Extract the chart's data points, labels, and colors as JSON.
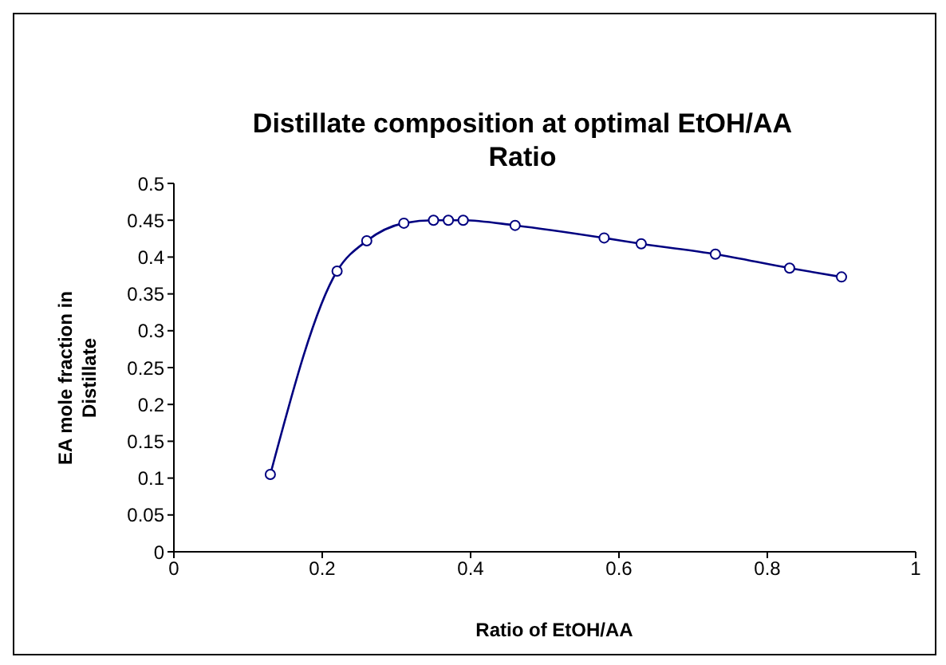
{
  "chart_data": {
    "type": "line",
    "title": "Distillate composition at optimal EtOH/AA Ratio",
    "xlabel": "Ratio of EtOH/AA",
    "ylabel": "EA mole fraction in Distillate",
    "x": [
      0.13,
      0.22,
      0.26,
      0.31,
      0.35,
      0.37,
      0.39,
      0.46,
      0.58,
      0.63,
      0.73,
      0.83,
      0.9
    ],
    "series": [
      {
        "color": "#000080",
        "values": [
          0.105,
          0.381,
          0.422,
          0.446,
          0.45,
          0.45,
          0.45,
          0.443,
          0.426,
          0.418,
          0.404,
          0.385,
          0.373
        ]
      }
    ],
    "xlim": [
      0,
      1
    ],
    "xticks": [
      0,
      0.2,
      0.4,
      0.6,
      0.8,
      1
    ],
    "ylim": [
      0,
      0.5
    ],
    "yticks": [
      0,
      0.05,
      0.1,
      0.15,
      0.2,
      0.25,
      0.3,
      0.35,
      0.4,
      0.45,
      0.5
    ],
    "grid": false,
    "legend": false,
    "marker": "circle",
    "line_style": "solid"
  }
}
